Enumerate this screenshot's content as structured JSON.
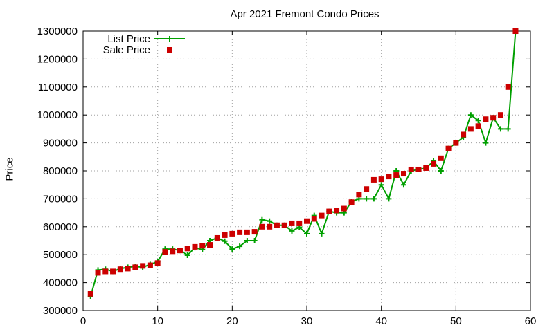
{
  "chart_data": {
    "type": "line",
    "title": "Apr 2021 Fremont Condo Prices",
    "xlabel": "",
    "ylabel": "Price",
    "xlim": [
      0,
      60
    ],
    "ylim": [
      300000,
      1300000
    ],
    "xticks": [
      0,
      10,
      20,
      30,
      40,
      50,
      60
    ],
    "yticks": [
      300000,
      400000,
      500000,
      600000,
      700000,
      800000,
      900000,
      1000000,
      1100000,
      1200000,
      1300000
    ],
    "grid": true,
    "legend_position": "top-left",
    "series": [
      {
        "name": "List Price",
        "style": "line+plus",
        "color": "#00a000",
        "x": [
          1,
          2,
          3,
          4,
          5,
          6,
          7,
          8,
          9,
          10,
          11,
          12,
          13,
          14,
          15,
          16,
          17,
          18,
          19,
          20,
          21,
          22,
          23,
          24,
          25,
          26,
          27,
          28,
          29,
          30,
          31,
          32,
          33,
          34,
          35,
          36,
          37,
          38,
          39,
          40,
          41,
          42,
          43,
          44,
          45,
          46,
          47,
          48,
          49,
          50,
          51,
          52,
          53,
          54,
          55,
          56,
          57,
          58
        ],
        "values": [
          350000,
          445000,
          448000,
          440000,
          450000,
          455000,
          458000,
          455000,
          465000,
          475000,
          520000,
          520000,
          515000,
          498000,
          525000,
          518000,
          550000,
          560000,
          548000,
          520000,
          530000,
          550000,
          550000,
          625000,
          620000,
          605000,
          605000,
          585000,
          598000,
          575000,
          640000,
          575000,
          655000,
          650000,
          650000,
          690000,
          700000,
          700000,
          700000,
          750000,
          700000,
          800000,
          750000,
          800000,
          805000,
          810000,
          835000,
          800000,
          880000,
          900000,
          920000,
          1000000,
          980000,
          900000,
          990000,
          950000,
          950000,
          1300000
        ]
      },
      {
        "name": "Sale Price",
        "style": "square",
        "color": "#cc0000",
        "x": [
          1,
          2,
          3,
          4,
          5,
          6,
          7,
          8,
          9,
          10,
          11,
          12,
          13,
          14,
          15,
          16,
          17,
          18,
          19,
          20,
          21,
          22,
          23,
          24,
          25,
          26,
          27,
          28,
          29,
          30,
          31,
          32,
          33,
          34,
          35,
          36,
          37,
          38,
          39,
          40,
          41,
          42,
          43,
          44,
          45,
          46,
          47,
          48,
          49,
          50,
          51,
          52,
          53,
          54,
          55,
          56,
          57,
          58
        ],
        "values": [
          360000,
          435000,
          440000,
          440000,
          448000,
          450000,
          455000,
          460000,
          462000,
          470000,
          510000,
          512000,
          515000,
          522000,
          528000,
          532000,
          535000,
          560000,
          570000,
          575000,
          580000,
          580000,
          582000,
          600000,
          600000,
          605000,
          605000,
          612000,
          612000,
          620000,
          628000,
          640000,
          655000,
          658000,
          665000,
          688000,
          715000,
          735000,
          768000,
          770000,
          780000,
          785000,
          790000,
          805000,
          805000,
          810000,
          825000,
          845000,
          880000,
          900000,
          930000,
          950000,
          960000,
          985000,
          990000,
          1000000,
          1100000,
          1300000
        ]
      }
    ]
  }
}
